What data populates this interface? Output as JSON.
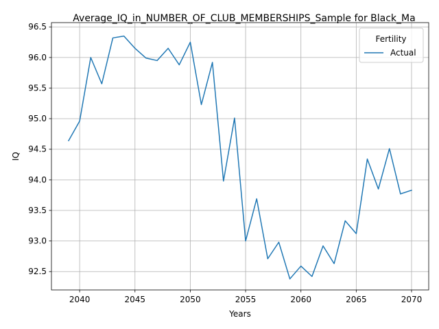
{
  "chart_data": {
    "type": "line",
    "title": "Average_IQ_in_NUMBER_OF_CLUB_MEMBERSHIPS_Sample for Black_Ma",
    "xlabel": "Years",
    "ylabel": "IQ",
    "xlim": [
      2037.45,
      2071.55
    ],
    "ylim": [
      92.2,
      96.57
    ],
    "x_ticks": [
      2040,
      2045,
      2050,
      2055,
      2060,
      2065,
      2070
    ],
    "y_ticks": [
      92.5,
      93.0,
      93.5,
      94.0,
      94.5,
      95.0,
      95.5,
      96.0,
      96.5
    ],
    "x_tick_labels": [
      "2040",
      "2045",
      "2050",
      "2055",
      "2060",
      "2065",
      "2070"
    ],
    "y_tick_labels": [
      "92.5",
      "93.0",
      "93.5",
      "94.0",
      "94.5",
      "95.0",
      "95.5",
      "96.0",
      "96.5"
    ],
    "grid": true,
    "legend": {
      "title": "Fertility",
      "placement": "top-right"
    },
    "series": [
      {
        "name": "Actual",
        "color": "#1f77b4",
        "x": [
          2039,
          2040,
          2041,
          2042,
          2043,
          2044,
          2045,
          2046,
          2047,
          2048,
          2049,
          2050,
          2051,
          2052,
          2053,
          2054,
          2055,
          2056,
          2057,
          2058,
          2059,
          2060,
          2061,
          2062,
          2063,
          2064,
          2065,
          2066,
          2067,
          2068,
          2069,
          2070
        ],
        "y": [
          94.64,
          94.96,
          96.0,
          95.57,
          96.32,
          96.35,
          96.15,
          95.99,
          95.95,
          96.15,
          95.88,
          96.25,
          95.23,
          95.92,
          93.98,
          95.01,
          93.0,
          93.69,
          92.71,
          92.98,
          92.38,
          92.59,
          92.42,
          92.92,
          92.63,
          93.33,
          93.12,
          94.34,
          93.85,
          94.51,
          93.77,
          93.83
        ]
      }
    ]
  }
}
